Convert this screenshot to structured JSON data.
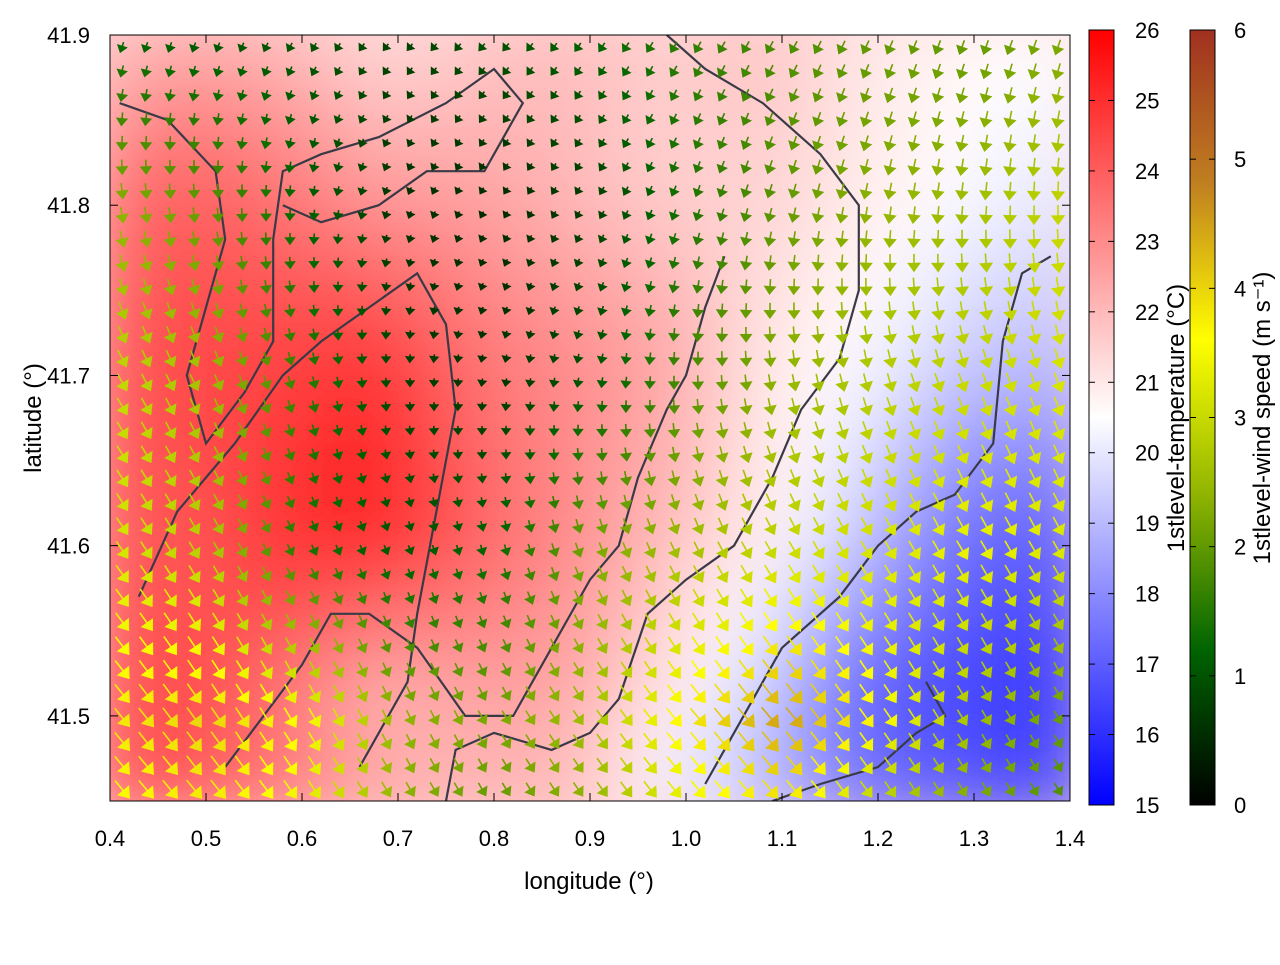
{
  "chart_data": {
    "type": "heatmap",
    "title": "",
    "xlabel": "longitude (°)",
    "ylabel": "latitude (°)",
    "xlim": [
      0.4,
      1.4
    ],
    "ylim": [
      41.45,
      41.9
    ],
    "xticks": [
      "0.4",
      "0.5",
      "0.6",
      "0.7",
      "0.8",
      "0.9",
      "1.0",
      "1.1",
      "1.2",
      "1.3",
      "1.4"
    ],
    "yticks": [
      "41.5",
      "41.6",
      "41.7",
      "41.8",
      "41.9"
    ],
    "temperature": {
      "colorbar_label": "1stlevel-temperature (°C)",
      "range": [
        15,
        26
      ],
      "ticks": [
        "15",
        "16",
        "17",
        "18",
        "19",
        "20",
        "21",
        "22",
        "23",
        "24",
        "25",
        "26"
      ],
      "colors": [
        "#0000ff",
        "#ffffff",
        "#ff0000"
      ],
      "field_lon": [
        0.4,
        0.5,
        0.6,
        0.7,
        0.8,
        0.9,
        1.0,
        1.1,
        1.2,
        1.3,
        1.4
      ],
      "field_lat": [
        41.9,
        41.8,
        41.7,
        41.6,
        41.5,
        41.45
      ],
      "field_values": [
        [
          21.5,
          22.0,
          21.8,
          21.0,
          21.5,
          22.0,
          21.5,
          22.0,
          21.0,
          20.8,
          20.5
        ],
        [
          23.5,
          24.0,
          23.5,
          22.5,
          22.5,
          22.0,
          21.5,
          21.5,
          21.0,
          20.5,
          20.0
        ],
        [
          24.0,
          24.5,
          24.5,
          25.0,
          23.5,
          23.0,
          22.5,
          21.0,
          20.5,
          19.5,
          19.0
        ],
        [
          24.5,
          24.0,
          25.0,
          25.5,
          24.0,
          23.0,
          22.0,
          21.0,
          19.5,
          17.5,
          17.0
        ],
        [
          24.0,
          24.5,
          23.5,
          22.0,
          22.5,
          22.5,
          21.0,
          19.5,
          17.0,
          16.5,
          16.0
        ],
        [
          24.5,
          24.0,
          23.5,
          22.5,
          22.0,
          22.0,
          20.0,
          19.0,
          17.5,
          17.0,
          16.5
        ]
      ]
    },
    "wind": {
      "colorbar_label": "1stlevel-wind speed (m s⁻¹)",
      "range": [
        0,
        6
      ],
      "ticks": [
        "0",
        "1",
        "2",
        "3",
        "4",
        "5",
        "6"
      ],
      "colors": [
        "#000000",
        "#006400",
        "#90b400",
        "#ffff00",
        "#c08020",
        "#a03020"
      ],
      "field_lon": [
        0.4,
        0.5,
        0.6,
        0.7,
        0.8,
        0.9,
        1.0,
        1.1,
        1.2,
        1.3,
        1.4
      ],
      "field_lat": [
        41.9,
        41.8,
        41.7,
        41.6,
        41.5,
        41.45
      ],
      "speed": [
        [
          1.2,
          1.0,
          1.0,
          0.8,
          1.0,
          1.2,
          1.6,
          1.8,
          2.0,
          2.0,
          2.2
        ],
        [
          2.4,
          2.0,
          1.2,
          0.6,
          0.5,
          0.7,
          1.4,
          2.0,
          2.4,
          2.6,
          3.0
        ],
        [
          3.0,
          2.6,
          1.6,
          0.8,
          0.6,
          1.0,
          1.8,
          2.4,
          2.8,
          3.0,
          3.2
        ],
        [
          3.2,
          2.8,
          1.4,
          1.0,
          1.2,
          2.2,
          2.6,
          3.0,
          3.2,
          3.4,
          3.2
        ],
        [
          3.8,
          4.0,
          3.6,
          2.4,
          2.2,
          2.6,
          3.8,
          4.5,
          3.6,
          2.6,
          2.0
        ],
        [
          3.6,
          3.8,
          3.4,
          2.4,
          2.0,
          2.4,
          3.4,
          3.8,
          2.8,
          2.2,
          1.8
        ]
      ],
      "direction_deg": [
        [
          200,
          200,
          210,
          220,
          220,
          215,
          210,
          210,
          205,
          200,
          200
        ],
        [
          170,
          175,
          185,
          200,
          210,
          210,
          200,
          195,
          190,
          185,
          180
        ],
        [
          150,
          155,
          165,
          180,
          190,
          190,
          180,
          170,
          165,
          160,
          160
        ],
        [
          145,
          150,
          155,
          160,
          165,
          160,
          155,
          150,
          150,
          150,
          150
        ],
        [
          140,
          145,
          150,
          155,
          150,
          145,
          140,
          140,
          145,
          150,
          150
        ],
        [
          140,
          140,
          145,
          150,
          150,
          145,
          140,
          140,
          145,
          150,
          150
        ]
      ]
    },
    "contours": [
      [
        [
          0.41,
          41.86
        ],
        [
          0.46,
          41.85
        ],
        [
          0.51,
          41.82
        ],
        [
          0.52,
          41.78
        ],
        [
          0.5,
          41.74
        ],
        [
          0.48,
          41.7
        ],
        [
          0.5,
          41.66
        ],
        [
          0.54,
          41.69
        ],
        [
          0.57,
          41.72
        ],
        [
          0.57,
          41.78
        ],
        [
          0.58,
          41.82
        ],
        [
          0.62,
          41.83
        ],
        [
          0.68,
          41.84
        ],
        [
          0.75,
          41.86
        ],
        [
          0.8,
          41.88
        ],
        [
          0.83,
          41.86
        ],
        [
          0.79,
          41.82
        ],
        [
          0.73,
          41.82
        ],
        [
          0.68,
          41.8
        ],
        [
          0.62,
          41.79
        ],
        [
          0.58,
          41.8
        ]
      ],
      [
        [
          0.43,
          41.57
        ],
        [
          0.47,
          41.62
        ],
        [
          0.53,
          41.66
        ],
        [
          0.58,
          41.7
        ],
        [
          0.62,
          41.72
        ],
        [
          0.67,
          41.74
        ],
        [
          0.72,
          41.76
        ],
        [
          0.75,
          41.73
        ],
        [
          0.76,
          41.68
        ],
        [
          0.74,
          41.62
        ],
        [
          0.72,
          41.56
        ],
        [
          0.71,
          41.52
        ],
        [
          0.66,
          41.47
        ]
      ],
      [
        [
          0.52,
          41.47
        ],
        [
          0.56,
          41.5
        ],
        [
          0.6,
          41.53
        ],
        [
          0.63,
          41.56
        ],
        [
          0.67,
          41.56
        ],
        [
          0.72,
          41.54
        ],
        [
          0.77,
          41.5
        ],
        [
          0.82,
          41.5
        ],
        [
          0.86,
          41.54
        ],
        [
          0.9,
          41.58
        ],
        [
          0.93,
          41.6
        ],
        [
          0.95,
          41.64
        ],
        [
          0.98,
          41.68
        ],
        [
          1.0,
          41.7
        ],
        [
          1.02,
          41.74
        ],
        [
          1.04,
          41.77
        ]
      ],
      [
        [
          0.75,
          41.45
        ],
        [
          0.76,
          41.48
        ],
        [
          0.8,
          41.49
        ],
        [
          0.86,
          41.48
        ],
        [
          0.9,
          41.49
        ],
        [
          0.93,
          41.51
        ],
        [
          0.96,
          41.56
        ],
        [
          1.0,
          41.58
        ],
        [
          1.05,
          41.6
        ],
        [
          1.09,
          41.64
        ],
        [
          1.12,
          41.68
        ],
        [
          1.16,
          41.71
        ],
        [
          1.18,
          41.75
        ],
        [
          1.18,
          41.8
        ],
        [
          1.14,
          41.83
        ],
        [
          1.08,
          41.86
        ],
        [
          1.02,
          41.88
        ],
        [
          0.98,
          41.9
        ]
      ],
      [
        [
          1.02,
          41.46
        ],
        [
          1.06,
          41.5
        ],
        [
          1.1,
          41.54
        ],
        [
          1.16,
          41.57
        ],
        [
          1.2,
          41.6
        ],
        [
          1.24,
          41.62
        ],
        [
          1.28,
          41.63
        ],
        [
          1.32,
          41.66
        ],
        [
          1.33,
          41.72
        ],
        [
          1.35,
          41.76
        ],
        [
          1.38,
          41.77
        ]
      ],
      [
        [
          1.09,
          41.45
        ],
        [
          1.14,
          41.46
        ],
        [
          1.2,
          41.47
        ],
        [
          1.24,
          41.49
        ],
        [
          1.27,
          41.5
        ],
        [
          1.25,
          41.52
        ]
      ]
    ]
  }
}
